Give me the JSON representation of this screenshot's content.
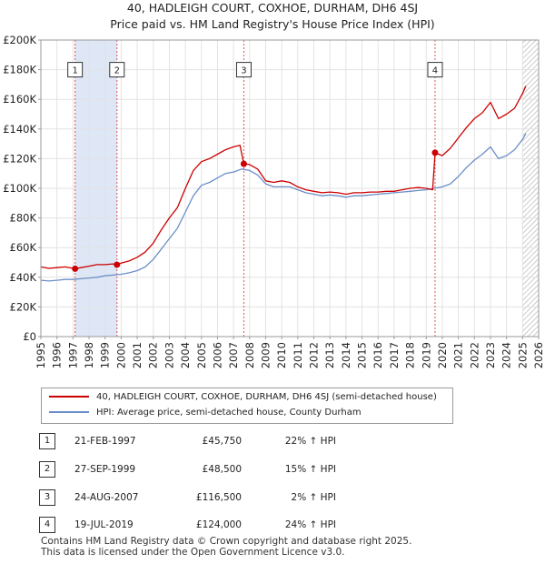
{
  "header": {
    "line1": "40, HADLEIGH COURT, COXHOE, DURHAM, DH6 4SJ",
    "line2": "Price paid vs. HM Land Registry's House Price Index (HPI)"
  },
  "chart_data": {
    "type": "line",
    "title": "40, HADLEIGH COURT, COXHOE, DURHAM, DH6 4SJ — Price paid vs. HM Land Registry's House Price Index (HPI)",
    "xlabel": "",
    "ylabel": "",
    "xlim": [
      1995,
      2026
    ],
    "ylim": [
      0,
      200000
    ],
    "x_ticks": [
      1995,
      1996,
      1997,
      1998,
      1999,
      2000,
      2001,
      2002,
      2003,
      2004,
      2005,
      2006,
      2007,
      2008,
      2009,
      2010,
      2011,
      2012,
      2013,
      2014,
      2015,
      2016,
      2017,
      2018,
      2019,
      2020,
      2021,
      2022,
      2023,
      2024,
      2025,
      2026
    ],
    "y_ticks": [
      0,
      20000,
      40000,
      60000,
      80000,
      100000,
      120000,
      140000,
      160000,
      180000,
      200000
    ],
    "y_tick_labels": [
      "£0",
      "£20K",
      "£40K",
      "£60K",
      "£80K",
      "£100K",
      "£120K",
      "£140K",
      "£160K",
      "£180K",
      "£200K"
    ],
    "grid": true,
    "colors": {
      "property": "#cc0000",
      "hpi": "#6b8fc8",
      "shade": "#dde7f6",
      "vline": "#e05050",
      "hatch": "#bbbbbb"
    },
    "series": [
      {
        "name": "40, HADLEIGH COURT, COXHOE, DURHAM, DH6 4SJ (semi-detached house)",
        "color": "#cc0000",
        "x": [
          1995.0,
          1995.5,
          1996.0,
          1996.5,
          1997.13,
          1997.5,
          1998.0,
          1998.5,
          1999.0,
          1999.5,
          1999.74,
          2000.0,
          2000.5,
          2001.0,
          2001.5,
          2002.0,
          2002.5,
          2003.0,
          2003.5,
          2004.0,
          2004.5,
          2005.0,
          2005.5,
          2006.0,
          2006.5,
          2007.0,
          2007.4,
          2007.64,
          2008.0,
          2008.5,
          2009.0,
          2009.5,
          2010.0,
          2010.5,
          2011.0,
          2011.5,
          2012.0,
          2012.5,
          2013.0,
          2013.5,
          2014.0,
          2014.5,
          2015.0,
          2015.5,
          2016.0,
          2016.5,
          2017.0,
          2017.5,
          2018.0,
          2018.5,
          2019.0,
          2019.4,
          2019.55,
          2020.0,
          2020.5,
          2021.0,
          2021.5,
          2022.0,
          2022.5,
          2023.0,
          2023.5,
          2024.0,
          2024.5,
          2025.0,
          2025.2
        ],
        "y": [
          47000,
          46000,
          46500,
          47000,
          45750,
          46500,
          47500,
          48500,
          48500,
          49000,
          48500,
          49500,
          51000,
          53500,
          57000,
          63000,
          72000,
          80000,
          87000,
          100000,
          112000,
          118000,
          120000,
          123000,
          126000,
          128000,
          129000,
          116500,
          116000,
          113000,
          105000,
          104000,
          105000,
          104000,
          101000,
          99000,
          98000,
          97000,
          97500,
          97000,
          96000,
          97000,
          97000,
          97500,
          97500,
          98000,
          98000,
          99000,
          100000,
          100500,
          100000,
          99000,
          124000,
          122000,
          127000,
          134000,
          141000,
          147000,
          151000,
          158000,
          147000,
          150000,
          154000,
          164000,
          169000
        ]
      },
      {
        "name": "HPI: Average price, semi-detached house, County Durham",
        "color": "#6b8fc8",
        "x": [
          1995.0,
          1995.5,
          1996.0,
          1996.5,
          1997.0,
          1997.5,
          1998.0,
          1998.5,
          1999.0,
          1999.5,
          2000.0,
          2000.5,
          2001.0,
          2001.5,
          2002.0,
          2002.5,
          2003.0,
          2003.5,
          2004.0,
          2004.5,
          2005.0,
          2005.5,
          2006.0,
          2006.5,
          2007.0,
          2007.5,
          2008.0,
          2008.5,
          2009.0,
          2009.5,
          2010.0,
          2010.5,
          2011.0,
          2011.5,
          2012.0,
          2012.5,
          2013.0,
          2013.5,
          2014.0,
          2014.5,
          2015.0,
          2015.5,
          2016.0,
          2016.5,
          2017.0,
          2017.5,
          2018.0,
          2018.5,
          2019.0,
          2019.5,
          2020.0,
          2020.5,
          2021.0,
          2021.5,
          2022.0,
          2022.5,
          2023.0,
          2023.5,
          2024.0,
          2024.5,
          2025.0,
          2025.2
        ],
        "y": [
          38000,
          37500,
          38000,
          38500,
          38500,
          39000,
          39500,
          40000,
          41000,
          41500,
          42000,
          43000,
          44500,
          47000,
          52000,
          59000,
          66000,
          73000,
          84000,
          95000,
          102000,
          104000,
          107000,
          110000,
          111000,
          113000,
          112000,
          109000,
          103000,
          101000,
          101000,
          101000,
          99000,
          97000,
          96000,
          95000,
          95500,
          95000,
          94000,
          95000,
          95000,
          95500,
          96000,
          96500,
          97000,
          97500,
          98000,
          98500,
          99000,
          100000,
          101000,
          103000,
          108000,
          114000,
          119000,
          123000,
          128000,
          120000,
          122000,
          126000,
          133000,
          137000
        ]
      }
    ],
    "sales": [
      {
        "label": "1",
        "x": 1997.13,
        "price": 45750
      },
      {
        "label": "2",
        "x": 1999.74,
        "price": 48500
      },
      {
        "label": "3",
        "x": 2007.64,
        "price": 116500
      },
      {
        "label": "4",
        "x": 2019.55,
        "price": 124000
      }
    ],
    "shaded_periods": [
      [
        1997.13,
        1999.74
      ]
    ],
    "hatched_from": 2025.0
  },
  "legend": {
    "property_label": "40, HADLEIGH COURT, COXHOE, DURHAM, DH6 4SJ (semi-detached house)",
    "hpi_label": "HPI: Average price, semi-detached house, County Durham"
  },
  "sales_table": [
    {
      "num": "1",
      "date": "21-FEB-1997",
      "price": "£45,750",
      "hpi": "22% ↑ HPI"
    },
    {
      "num": "2",
      "date": "27-SEP-1999",
      "price": "£48,500",
      "hpi": "15% ↑ HPI"
    },
    {
      "num": "3",
      "date": "24-AUG-2007",
      "price": "£116,500",
      "hpi": "2% ↑ HPI"
    },
    {
      "num": "4",
      "date": "19-JUL-2019",
      "price": "£124,000",
      "hpi": "24% ↑ HPI"
    }
  ],
  "footer": {
    "line1": "Contains HM Land Registry data © Crown copyright and database right 2025.",
    "line2": "This data is licensed under the Open Government Licence v3.0."
  }
}
